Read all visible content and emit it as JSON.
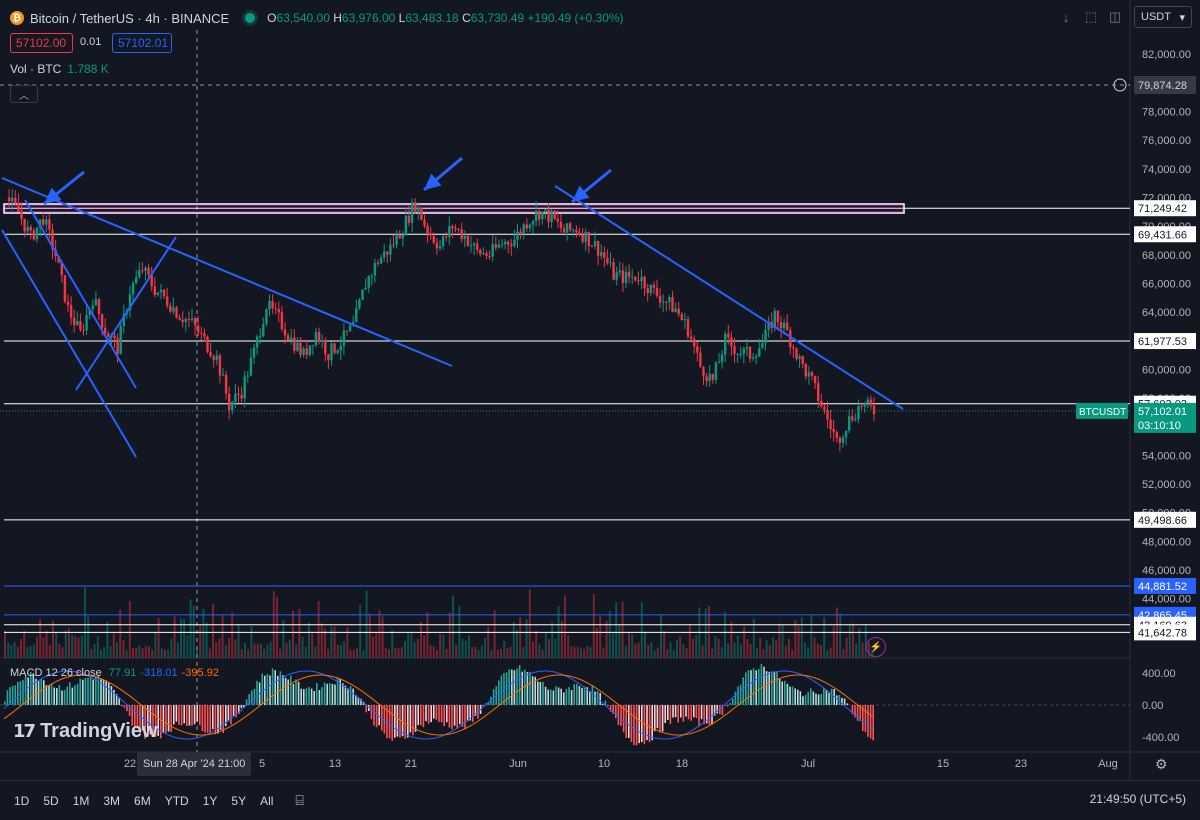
{
  "header": {
    "symbol": "Bitcoin / TetherUS · 4h · BINANCE",
    "coin_icon": "₿",
    "ohlc": {
      "o_label": "O",
      "o": "63,540.00",
      "h_label": "H",
      "h": "63,976.00",
      "l_label": "L",
      "l": "63,483.18",
      "c_label": "C",
      "c": "63,730.49",
      "change": "+190.49 (+0.30%)"
    },
    "sell_price": "57102.00",
    "spread": "0.01",
    "buy_price": "57102.01",
    "volume_label": "Vol · BTC",
    "volume_value": "1.788 K",
    "collapse_icon": "chevron-up-icon"
  },
  "toolbar": {
    "buttons": [
      "download-icon",
      "fullscreen-icon",
      "screenshot-icon",
      "refresh-icon"
    ],
    "currency": "USDT"
  },
  "price_axis": {
    "ticks": [
      "82,000.00",
      "80,000.00",
      "78,000.00",
      "76,000.00",
      "74,000.00",
      "72,000.00",
      "70,000.00",
      "68,000.00",
      "66,000.00",
      "64,000.00",
      "62,000.00",
      "60,000.00",
      "58,000.00",
      "56,000.00",
      "54,000.00",
      "52,000.00",
      "50,000.00",
      "48,000.00",
      "46,000.00",
      "44,000.00"
    ],
    "crosshair_price": "79,874.28"
  },
  "horizontal_levels": [
    {
      "label": "71,249.42",
      "value": 71249.42,
      "color": "#ffffff"
    },
    {
      "label": "69,431.66",
      "value": 69431.66,
      "color": "#ffffff"
    },
    {
      "label": "61,977.53",
      "value": 61977.53,
      "color": "#ffffff"
    },
    {
      "label": "57,603.03",
      "value": 57603.03,
      "color": "#ffffff"
    },
    {
      "label": "49,498.66",
      "value": 49498.66,
      "color": "#ffffff"
    },
    {
      "label": "44,881.52",
      "value": 44881.52,
      "color": "#2962ff"
    },
    {
      "label": "42,865.45",
      "value": 42865.45,
      "color": "#2962ff"
    },
    {
      "label": "42,169.63",
      "value": 42169.63,
      "color": "#ffffff"
    },
    {
      "label": "41,642.78",
      "value": 41642.78,
      "color": "#ffffff"
    }
  ],
  "last_price": {
    "symbol": "BTCUSDT",
    "price": "57,102.01",
    "countdown": "03:10:10"
  },
  "macd": {
    "name": "MACD",
    "params": "12 26 close",
    "hist": "77.91",
    "macd": "-318.01",
    "signal": "-395.92",
    "ticks": [
      "400.00",
      "0.00",
      "-400.00"
    ]
  },
  "x_axis": {
    "labels": [
      "22",
      "5",
      "13",
      "21",
      "Jun",
      "10",
      "18",
      "Jul",
      "15",
      "23",
      "Aug"
    ],
    "crosshair_label": "Sun 28 Apr '24   21:00"
  },
  "timeframes": [
    "1D",
    "5D",
    "1M",
    "3M",
    "6M",
    "YTD",
    "1Y",
    "5Y",
    "All"
  ],
  "clock": "21:49:50 (UTC+5)",
  "brand": "TradingView",
  "chart_data": {
    "type": "candlestick",
    "y_range": [
      43000,
      83000
    ],
    "price_points": [
      72000,
      71000,
      69200,
      70600,
      68000,
      64200,
      62500,
      65000,
      62800,
      61500,
      65500,
      67000,
      65600,
      64800,
      63800,
      63200,
      62000,
      60800,
      57500,
      58500,
      61200,
      64500,
      63500,
      62100,
      61000,
      62600,
      61100,
      61900,
      63000,
      66000,
      67600,
      68500,
      69900,
      71600,
      69700,
      68600,
      70000,
      69300,
      68200,
      68000,
      68800,
      69100,
      70300,
      71000,
      70600,
      69600,
      69800,
      69100,
      68200,
      66600,
      66400,
      66500,
      65600,
      64900,
      64200,
      62800,
      60200,
      59200,
      62000,
      61300,
      61000,
      61800,
      63800,
      62600,
      60600,
      59100,
      57000,
      55000,
      56500,
      57600,
      57100
    ],
    "annotations": [
      "blue arrows at 72,000 resistance",
      "descending trendlines",
      "resistance box 70,700–71,300"
    ]
  }
}
